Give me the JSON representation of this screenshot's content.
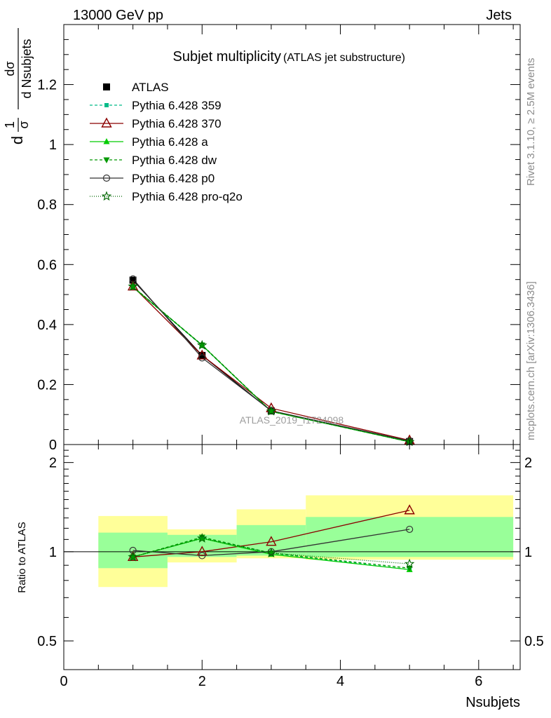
{
  "header": {
    "energy_label": "13000 GeV pp",
    "process_label": "Jets"
  },
  "side_text": {
    "rivet": "Rivet 3.1.10, ≥ 2.5M events",
    "source": "mcplots.cern.ch [arXiv:1306.3436]"
  },
  "chart_data": [
    {
      "type": "line",
      "title": "Subjet multiplicity",
      "subtitle": "(ATLAS jet substructure)",
      "watermark": "ATLAS_2019_I1724098",
      "ylabel_parts": [
        "d",
        "1",
        "σ",
        "dσ",
        "d Nsubjets"
      ],
      "ylim": [
        0,
        1.4
      ],
      "yticks": [
        0,
        0.2,
        0.4,
        0.6,
        0.8,
        1,
        1.2
      ],
      "ytick_labels": [
        "0",
        "0.2",
        "0.4",
        "0.6",
        "0.8",
        "1",
        "1.2"
      ],
      "xlim": [
        0,
        6.6
      ],
      "legend_position": "top-left",
      "series": [
        {
          "name": "ATLAS",
          "color": "#000000",
          "marker": "square-filled",
          "x": [
            1,
            2,
            3,
            5
          ],
          "y": [
            0.548,
            0.297,
            0.112,
            0.01
          ]
        },
        {
          "name": "Pythia 6.428 359",
          "color": "#00bb88",
          "dash": "4,3",
          "marker": "square-small",
          "x": [
            1,
            2,
            3,
            5
          ],
          "y": [
            0.524,
            0.33,
            0.11,
            0.009
          ]
        },
        {
          "name": "Pythia 6.428 370",
          "color": "#8b0000",
          "marker": "triangle-open",
          "x": [
            1,
            2,
            3,
            5
          ],
          "y": [
            0.527,
            0.297,
            0.121,
            0.014
          ]
        },
        {
          "name": "Pythia 6.428 a",
          "color": "#00cc00",
          "marker": "triangle-filled",
          "x": [
            1,
            2,
            3,
            5
          ],
          "y": [
            0.525,
            0.331,
            0.11,
            0.009
          ]
        },
        {
          "name": "Pythia 6.428 dw",
          "color": "#009900",
          "dash": "4,3",
          "marker": "triangle-down-filled",
          "x": [
            1,
            2,
            3,
            5
          ],
          "y": [
            0.526,
            0.332,
            0.111,
            0.009
          ]
        },
        {
          "name": "Pythia 6.428 p0",
          "color": "#333333",
          "marker": "circle-open",
          "x": [
            1,
            2,
            3,
            5
          ],
          "y": [
            0.552,
            0.289,
            0.113,
            0.012
          ]
        },
        {
          "name": "Pythia 6.428 pro-q2o",
          "color": "#006600",
          "dash": "1,2",
          "marker": "star-open",
          "x": [
            1,
            2,
            3,
            5
          ],
          "y": [
            0.527,
            0.331,
            0.111,
            0.009
          ]
        }
      ]
    },
    {
      "type": "line",
      "ylabel": "Ratio to ATLAS",
      "xlabel": "Nsubjets",
      "log_y": true,
      "ylim": [
        0.4,
        2.3
      ],
      "yticks": [
        0.5,
        1,
        2
      ],
      "ytick_labels": [
        "0.5",
        "1",
        "2"
      ],
      "xlim": [
        0,
        6.6
      ],
      "xticks": [
        0,
        2,
        4,
        6
      ],
      "xtick_labels": [
        "0",
        "2",
        "4",
        "6"
      ],
      "bands": [
        {
          "x_low": 0.5,
          "x_high": 1.5,
          "yellow": [
            0.76,
            1.32
          ],
          "green": [
            0.88,
            1.16
          ]
        },
        {
          "x_low": 1.5,
          "x_high": 2.5,
          "yellow": [
            0.92,
            1.19
          ],
          "green": [
            0.96,
            1.14
          ]
        },
        {
          "x_low": 2.5,
          "x_high": 3.5,
          "yellow": [
            0.95,
            1.39
          ],
          "green": [
            0.97,
            1.23
          ]
        },
        {
          "x_low": 3.5,
          "x_high": 6.5,
          "yellow": [
            0.94,
            1.55
          ],
          "green": [
            0.96,
            1.31
          ]
        }
      ],
      "series": [
        {
          "name": "Pythia 6.428 359",
          "color": "#00bb88",
          "dash": "4,3",
          "marker": "square-small",
          "x": [
            1,
            2,
            3,
            5
          ],
          "y": [
            0.96,
            1.11,
            0.99,
            0.87
          ]
        },
        {
          "name": "Pythia 6.428 370",
          "color": "#8b0000",
          "marker": "triangle-open",
          "x": [
            1,
            2,
            3,
            5
          ],
          "y": [
            0.96,
            1.0,
            1.08,
            1.38
          ]
        },
        {
          "name": "Pythia 6.428 a",
          "color": "#00cc00",
          "marker": "triangle-filled",
          "x": [
            1,
            2,
            3,
            5
          ],
          "y": [
            0.96,
            1.11,
            0.98,
            0.87
          ]
        },
        {
          "name": "Pythia 6.428 dw",
          "color": "#009900",
          "dash": "4,3",
          "marker": "triangle-down-filled",
          "x": [
            1,
            2,
            3,
            5
          ],
          "y": [
            0.96,
            1.12,
            0.99,
            0.88
          ]
        },
        {
          "name": "Pythia 6.428 p0",
          "color": "#333333",
          "marker": "circle-open",
          "x": [
            1,
            2,
            3,
            5
          ],
          "y": [
            1.01,
            0.97,
            1.0,
            1.19
          ]
        },
        {
          "name": "Pythia 6.428 pro-q2o",
          "color": "#006600",
          "dash": "1,2",
          "marker": "star-open",
          "x": [
            1,
            2,
            3,
            5
          ],
          "y": [
            0.96,
            1.11,
            0.99,
            0.91
          ]
        }
      ]
    }
  ]
}
